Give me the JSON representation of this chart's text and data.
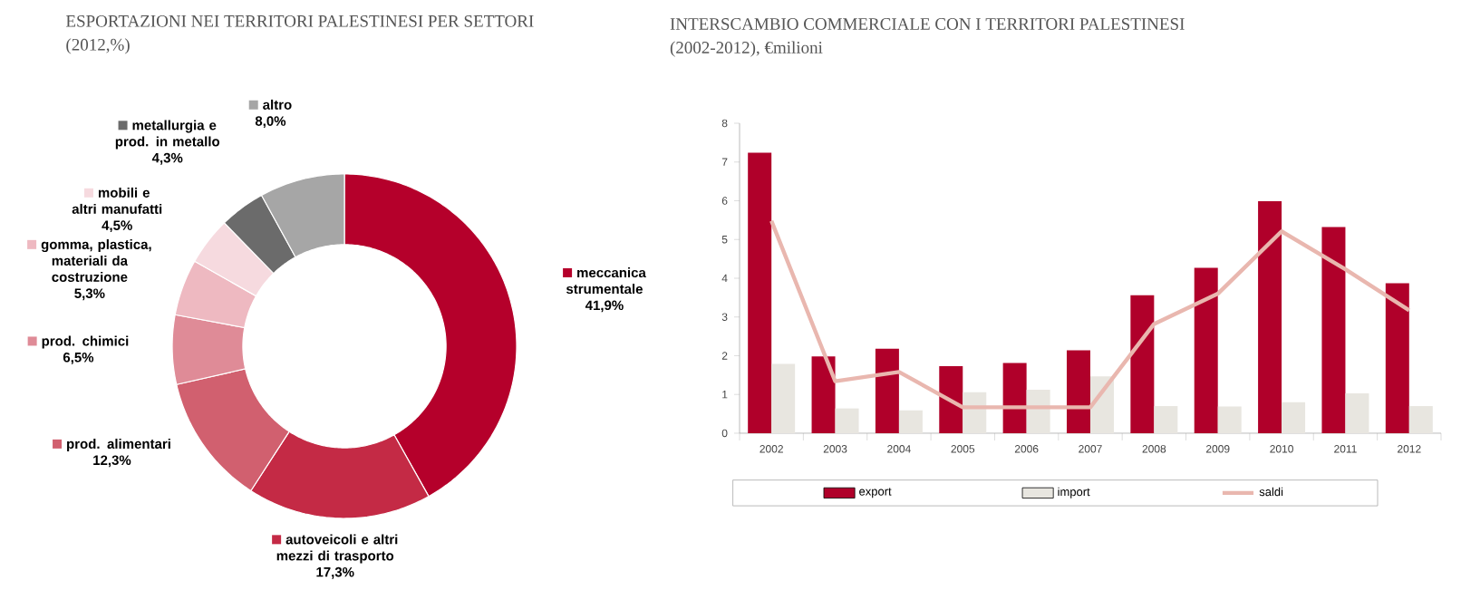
{
  "chart_data": [
    {
      "type": "donut",
      "title": "ESPORTAZIONI NEI TERRITORI PALESTINESI PER SETTORI",
      "subtitle": "(2012,%)",
      "categories": [
        "meccanica strumentale",
        "autoveicoli e altri mezzi di trasporto",
        "prod. alimentari",
        "prod. chimici",
        "gomma, plastica, materiali da costruzione",
        "mobili e altri manufatti",
        "metallurgia e prod. in metallo",
        "altro"
      ],
      "values": [
        41.9,
        17.3,
        12.3,
        6.5,
        5.3,
        4.5,
        4.3,
        8.0
      ],
      "value_labels": [
        "41,9%",
        "17,3%",
        "12,3%",
        "6,5%",
        "5,3%",
        "4,5%",
        "4,3%",
        "8,0%"
      ],
      "colors": [
        "#b5002b",
        "#c42a45",
        "#d1606f",
        "#df8b97",
        "#eeb9c1",
        "#f6dadf",
        "#6b6b6b",
        "#a6a6a6"
      ],
      "legend": "left"
    },
    {
      "type": "bar",
      "title": "INTERSCAMBIO COMMERCIALE CON I TERRITORI PALESTINESI",
      "subtitle": "(2002-2012), €milioni",
      "categories": [
        "2002",
        "2003",
        "2004",
        "2005",
        "2006",
        "2007",
        "2008",
        "2009",
        "2010",
        "2011",
        "2012"
      ],
      "series": [
        {
          "name": "export",
          "color": "#b0002a",
          "values": [
            7.24,
            1.98,
            2.18,
            1.73,
            1.81,
            2.14,
            3.56,
            4.27,
            5.99,
            5.32,
            3.87
          ]
        },
        {
          "name": "import",
          "color": "#e8e6e0",
          "values": [
            1.79,
            0.64,
            0.59,
            1.06,
            1.12,
            1.47,
            0.7,
            0.69,
            0.8,
            1.03,
            0.7
          ]
        },
        {
          "name": "saldi",
          "type": "line",
          "color": "#e9b7af",
          "values": [
            5.48,
            1.34,
            1.58,
            0.67,
            0.67,
            0.67,
            2.82,
            3.6,
            5.21,
            4.23,
            3.17
          ]
        }
      ],
      "ylim": [
        0,
        8
      ],
      "yticks": [
        0,
        1,
        2,
        3,
        4,
        5,
        6,
        7,
        8
      ],
      "legend": "bottom"
    }
  ]
}
